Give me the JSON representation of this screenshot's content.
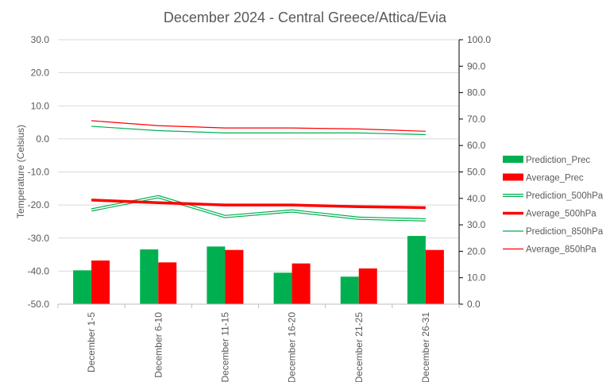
{
  "chart_data": {
    "type": "bar",
    "title": "December 2024 - Central Greece/Attica/Evia",
    "ylabel": "Temperature (Celsius)",
    "y2label": "",
    "ylim": [
      -50,
      30
    ],
    "y_ticks": [
      30,
      20,
      10,
      0,
      -10,
      -20,
      -30,
      -40,
      -50
    ],
    "y_tick_labels": [
      "30.0",
      "20.0",
      "10.0",
      "0.0",
      "-10.0",
      "-20.0",
      "-30.0",
      "-40.0",
      "-50.0"
    ],
    "y2lim": [
      0,
      100
    ],
    "y2_ticks": [
      100,
      90,
      80,
      70,
      60,
      50,
      40,
      30,
      20,
      10,
      0
    ],
    "y2_tick_labels": [
      "100.0",
      "90.0",
      "80.0",
      "70.0",
      "60.0",
      "50.0",
      "40.0",
      "30.0",
      "20.0",
      "10.0",
      "0.0"
    ],
    "categories": [
      "December 1-5",
      "December 6-10",
      "December 11-15",
      "December 16-20",
      "December 21-25",
      "December 26-31"
    ],
    "grid": true,
    "legend_position": "right",
    "colors": {
      "prediction": "#00B050",
      "average": "#FF0000",
      "grid": "#D9D9D9",
      "axis": "#000000",
      "text": "#595959"
    },
    "series": [
      {
        "name": "Prediction_Prec",
        "type": "bar",
        "axis": "right",
        "color": "#00B050",
        "values": [
          12.8,
          20.7,
          21.8,
          11.9,
          10.4,
          25.8
        ]
      },
      {
        "name": "Average_Prec",
        "type": "bar",
        "axis": "right",
        "color": "#FF0000",
        "values": [
          16.5,
          15.8,
          20.5,
          15.4,
          13.5,
          20.5
        ]
      },
      {
        "name": "Prediction_500hPa",
        "type": "line",
        "style": "double",
        "axis": "left",
        "color": "#00B050",
        "values": [
          -21.5,
          -17.5,
          -23.5,
          -21.8,
          -24.0,
          -24.5
        ]
      },
      {
        "name": "Average_500hPa",
        "type": "line",
        "style": "thick",
        "axis": "left",
        "color": "#FF0000",
        "values": [
          -18.5,
          -19.3,
          -20.0,
          -20.0,
          -20.5,
          -20.8
        ]
      },
      {
        "name": "Prediction_850hPa",
        "type": "line",
        "style": "thin",
        "axis": "left",
        "color": "#00B050",
        "values": [
          3.8,
          2.5,
          1.8,
          1.8,
          1.8,
          1.3
        ]
      },
      {
        "name": "Average_850hPa",
        "type": "line",
        "style": "thin",
        "axis": "left",
        "color": "#FF0000",
        "values": [
          5.5,
          4.0,
          3.3,
          3.3,
          3.0,
          2.3
        ]
      }
    ]
  }
}
